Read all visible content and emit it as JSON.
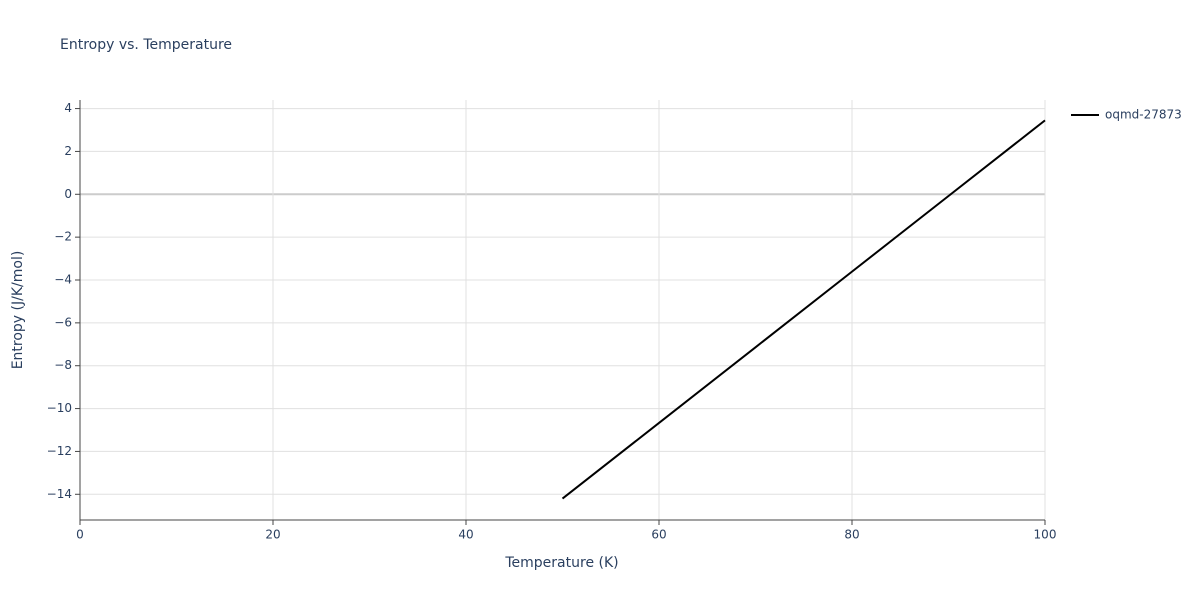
{
  "chart_data": {
    "type": "line",
    "title": "Entropy vs. Temperature",
    "x_label": "Temperature (K)",
    "y_label": "Entropy (J/K/mol)",
    "x": [
      50,
      60,
      70,
      80,
      90,
      100
    ],
    "series": [
      {
        "name": "oqmd-27873",
        "color": "#000000",
        "values": [
          -14.2,
          -10.67,
          -7.14,
          -3.61,
          -0.08,
          3.45
        ]
      }
    ],
    "xlim": [
      0,
      100
    ],
    "xticks": [
      0,
      20,
      40,
      60,
      80,
      100
    ],
    "ylim": [
      -15.2,
      4.4
    ],
    "yticks": [
      4,
      2,
      0,
      {
        "value": -2,
        "label": "−2"
      },
      {
        "value": -4,
        "label": "−4"
      },
      {
        "value": -6,
        "label": "−6"
      },
      {
        "value": -8,
        "label": "−8"
      },
      {
        "value": -10,
        "label": "−10"
      },
      {
        "value": -12,
        "label": "−12"
      },
      {
        "value": -14,
        "label": "−14"
      }
    ],
    "grid": true,
    "legend": "right"
  }
}
